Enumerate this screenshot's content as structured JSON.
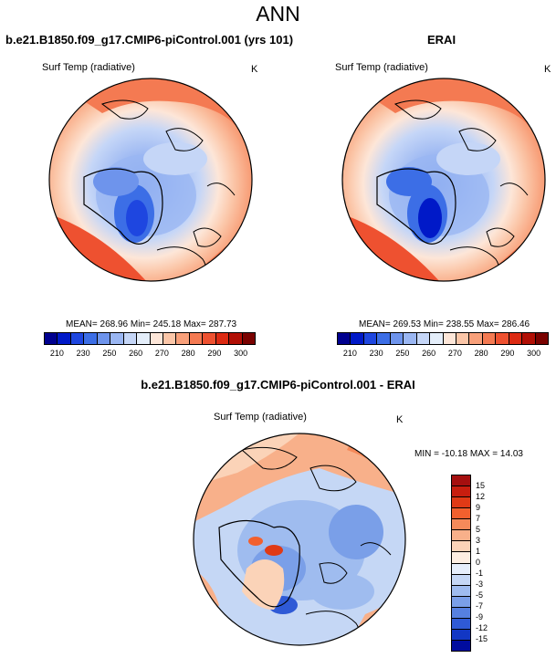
{
  "title": "ANN",
  "top_left": {
    "title": "b.e21.B1850.f09_g17.CMIP6-piControl.001 (yrs 101)",
    "variable": "Surf Temp (radiative)",
    "units": "K",
    "stats": "MEAN= 268.96  Min= 245.18  Max= 287.73"
  },
  "top_right": {
    "title": "ERAI",
    "variable": "Surf Temp (radiative)",
    "units": "K",
    "stats": "MEAN= 269.53  Min= 238.55  Max= 286.46"
  },
  "abs_colorbar": {
    "labels": [
      "210",
      "230",
      "250",
      "260",
      "270",
      "280",
      "290",
      "300"
    ],
    "colors": [
      "#00008f",
      "#0019c8",
      "#1e46e0",
      "#3c6ee6",
      "#6e94ec",
      "#9ab6f2",
      "#c5d6f7",
      "#e4eefa",
      "#fde6d8",
      "#fbc6a8",
      "#f8a07a",
      "#f47a52",
      "#ee5130",
      "#dc2a12",
      "#b10f05",
      "#7a0200"
    ]
  },
  "bottom": {
    "title": "b.e21.B1850.f09_g17.CMIP6-piControl.001 - ERAI",
    "variable": "Surf Temp (radiative)",
    "units": "K",
    "stats": "MIN = -10.18 MAX =  14.03"
  },
  "diff_colorbar": {
    "labels": [
      "15",
      "12",
      "9",
      "7",
      "5",
      "3",
      "1",
      "0",
      "-1",
      "-3",
      "-5",
      "-7",
      "-9",
      "-12",
      "-15"
    ],
    "colors": [
      "#a50f0f",
      "#c81e0f",
      "#e03a16",
      "#f2602e",
      "#f58a5a",
      "#f8b08a",
      "#fbd3b8",
      "#fdeee2",
      "#e6eefb",
      "#c5d7f5",
      "#9fbcef",
      "#7a9fe8",
      "#5680e0",
      "#2f5ad6",
      "#1237c4",
      "#000c9e"
    ]
  }
}
